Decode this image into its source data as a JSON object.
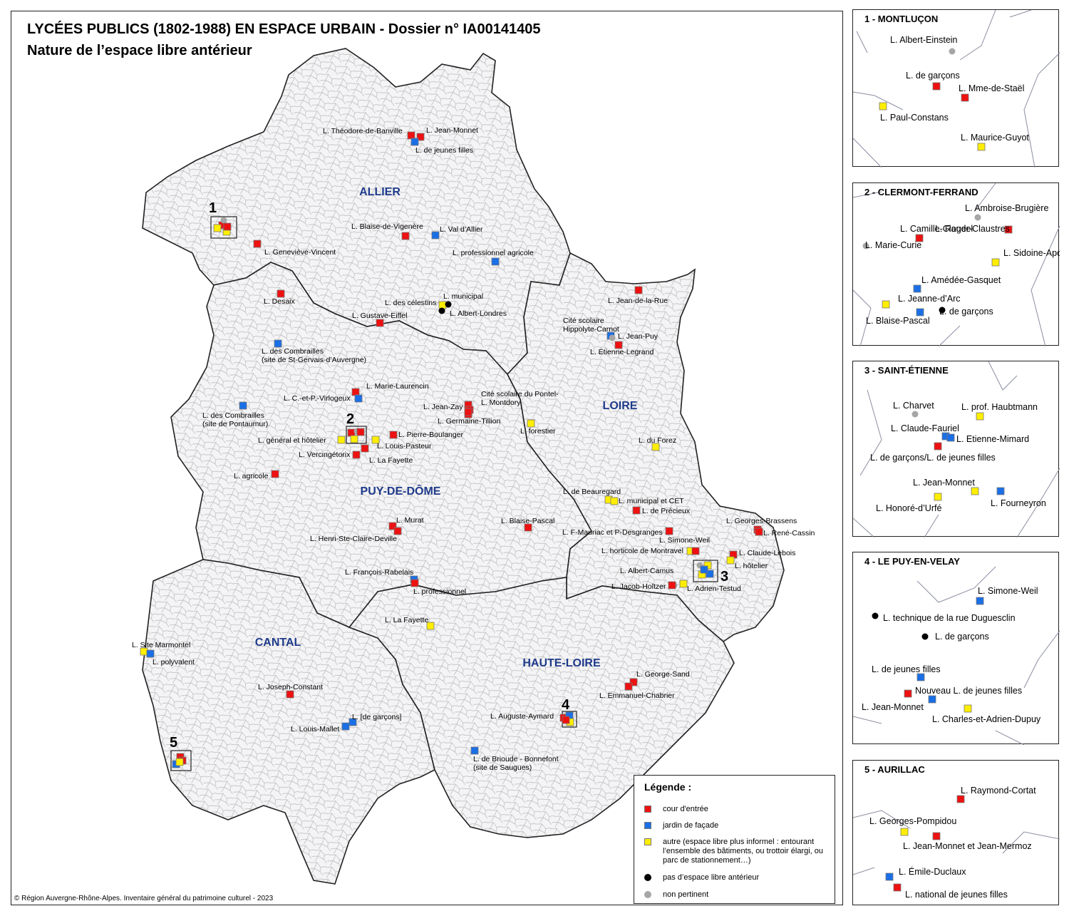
{
  "title": "LYCÉES PUBLICS (1802-1988) EN ESPACE URBAIN - Dossier n° IA00141405",
  "subtitle": "Nature de l’espace libre antérieur",
  "credit": "© Région Auvergne-Rhône-Alpes. Inventaire général du patrimoine culturel - 2023",
  "colors": {
    "cour": "#ee1111",
    "jardin": "#1a6fe6",
    "autre": "#ffee00",
    "aucun": "#000000",
    "non_pertinent": "#a6a6a6",
    "dept_label": "#1f3a8a",
    "commune_border": "#b3b3b3",
    "dept_border": "#222222"
  },
  "departments": [
    {
      "name": "ALLIER"
    },
    {
      "name": "PUY-DE-DÔME"
    },
    {
      "name": "LOIRE"
    },
    {
      "name": "CANTAL"
    },
    {
      "name": "HAUTE-LOIRE"
    }
  ],
  "legend": {
    "title": "Légende :",
    "items": [
      {
        "type": "cour",
        "label": "cour d'entrée"
      },
      {
        "type": "jardin",
        "label": "jardin de façade"
      },
      {
        "type": "autre",
        "label": "autre (espace libre plus informel : entourant l’ensemble des bâtiments, ou trottoir élargi, ou parc de stationnement…)"
      },
      {
        "type": "aucun",
        "label": "pas d’espace libre antérieur"
      },
      {
        "type": "non_pertinent",
        "label": "non pertinent"
      }
    ]
  },
  "zoom_boxes": [
    {
      "number": "1"
    },
    {
      "number": "2"
    },
    {
      "number": "3"
    },
    {
      "number": "4"
    },
    {
      "number": "5"
    }
  ],
  "lycees": [
    {
      "label": "L. Théodore-de-Banville",
      "type": "cour"
    },
    {
      "label": "L. Jean-Monnet",
      "type": "cour"
    },
    {
      "label": "L. de jeunes filles",
      "type": "jardin"
    },
    {
      "label": "L. Blaise-de-Vigenère",
      "type": "cour"
    },
    {
      "label": "L. Val d’Allier",
      "type": "jardin"
    },
    {
      "label": "L. Geneviève-Vincent",
      "type": "cour"
    },
    {
      "label": "L. professionnel agricole",
      "type": "jardin"
    },
    {
      "label": "L. Desaix",
      "type": "cour"
    },
    {
      "label": "L. des célestins",
      "type": "autre"
    },
    {
      "label": "L. municipal",
      "type": "aucun"
    },
    {
      "label": "L. Albert-Londres",
      "type": "aucun"
    },
    {
      "label": "L. Gustave-Eiffel",
      "type": "cour"
    },
    {
      "label": "L. Jean-de-la-Rue",
      "type": "cour"
    },
    {
      "label": "Cité scolaire Hippolyte-Carnot",
      "type": "jardin"
    },
    {
      "label": "L. Jean-Puy",
      "type": "non_pertinent"
    },
    {
      "label": "L. Étienne-Legrand",
      "type": "cour"
    },
    {
      "label": "L. des Combrailles (site de St-Gervais-d’Auvergne)",
      "type": "jardin"
    },
    {
      "label": "L. Marie-Laurencin",
      "type": "cour"
    },
    {
      "label": "L. C.-et-P.-Virlogeux",
      "type": "jardin"
    },
    {
      "label": "L. des Combrailles (site de Pontaumur)",
      "type": "jardin"
    },
    {
      "label": "Cité scolaire du Pontel-",
      "type": "cour"
    },
    {
      "label": "L. Jean-Zay",
      "type": "cour"
    },
    {
      "label": "L. Montdory",
      "type": "cour"
    },
    {
      "label": "L. Germaine-Tillion",
      "type": "cour"
    },
    {
      "label": "L. forestier",
      "type": "autre"
    },
    {
      "label": "L. Pierre-Boulanger",
      "type": "cour"
    },
    {
      "label": "L. général et hôtelier",
      "type": "autre"
    },
    {
      "label": "L. Louis-Pasteur",
      "type": "autre"
    },
    {
      "label": "L. Vercingétorix",
      "type": "cour"
    },
    {
      "label": "L. La Fayette",
      "type": "cour"
    },
    {
      "label": "L. du Forez",
      "type": "autre"
    },
    {
      "label": "L. agricole",
      "type": "cour"
    },
    {
      "label": "L. de Beauregard",
      "type": "autre"
    },
    {
      "label": "L. municipal et CET",
      "type": "autre"
    },
    {
      "label": "L. de Précieux",
      "type": "cour"
    },
    {
      "label": "L. Murat",
      "type": "cour"
    },
    {
      "label": "L. Henri-Ste-Claire-Deville",
      "type": "cour"
    },
    {
      "label": "L. Blaise-Pascal",
      "type": "cour"
    },
    {
      "label": "L. F-Mauriac et P-Desgranges",
      "type": "cour"
    },
    {
      "label": "L. Georges-Brassens",
      "type": "cour"
    },
    {
      "label": "L. René-Cassin",
      "type": "cour"
    },
    {
      "label": "L. Simone-Weil",
      "type": "autre"
    },
    {
      "label": "L. horticole de Montravel",
      "type": "cour"
    },
    {
      "label": "L. Claude-Lebois",
      "type": "cour"
    },
    {
      "label": "L. hôtelier",
      "type": "autre"
    },
    {
      "label": "L. François-Rabelais",
      "type": "jardin"
    },
    {
      "label": "L. professionnel",
      "type": "cour"
    },
    {
      "label": "L. Albert-Camus",
      "type": "non_pertinent"
    },
    {
      "label": "L. Jacob-Holtzer",
      "type": "cour"
    },
    {
      "label": "L. Adrien-Testud",
      "type": "autre"
    },
    {
      "label": "L. La Fayette",
      "type": "autre"
    },
    {
      "label": "L. Site Marmontel",
      "type": "autre"
    },
    {
      "label": "L. polyvalent",
      "type": "jardin"
    },
    {
      "label": "L. George-Sand",
      "type": "cour"
    },
    {
      "label": "L. Emmanuel-Chabrier",
      "type": "cour"
    },
    {
      "label": "L. Joseph-Constant",
      "type": "cour"
    },
    {
      "label": "L. [de garçons]",
      "type": "jardin"
    },
    {
      "label": "L. Louis-Mallet",
      "type": "jardin"
    },
    {
      "label": "L. Auguste-Aymard",
      "type": "cour"
    },
    {
      "label": "L. de Brioude - Bonnefont (site de Saugues)",
      "type": "jardin"
    }
  ],
  "insets": [
    {
      "title": "1 - MONTLUÇON",
      "items": [
        {
          "label": "L. Albert-Einstein",
          "type": "non_pertinent"
        },
        {
          "label": "L. de garçons",
          "type": "cour"
        },
        {
          "label": "L. Mme-de-Staël",
          "type": "cour"
        },
        {
          "label": "L. Paul-Constans",
          "type": "autre"
        },
        {
          "label": "L. Maurice-Guyot",
          "type": "autre"
        }
      ]
    },
    {
      "title": "2 - CLERMONT-FERRAND",
      "items": [
        {
          "label": "L. Ambroise-Brugière",
          "type": "non_pertinent"
        },
        {
          "label": "L. Camille-Claudel",
          "type": "cour"
        },
        {
          "label": "L. Roger-Claustres",
          "type": "cour"
        },
        {
          "label": "L. Marie-Curie",
          "type": "non_pertinent"
        },
        {
          "label": "L. Sidoine-Apollinaire",
          "type": "autre"
        },
        {
          "label": "L. Amédée-Gasquet",
          "type": "jardin"
        },
        {
          "label": "L. Jeanne-d’Arc",
          "type": "autre"
        },
        {
          "label": "L. de garçons",
          "type": "aucun"
        },
        {
          "label": "L. Blaise-Pascal",
          "type": "jardin"
        }
      ]
    },
    {
      "title": "3 - SAINT-ÉTIENNE",
      "items": [
        {
          "label": "L. Charvet",
          "type": "non_pertinent"
        },
        {
          "label": "L. prof. Haubtmann",
          "type": "autre"
        },
        {
          "label": "L. Claude-Fauriel",
          "type": "jardin"
        },
        {
          "label": "L. Etienne-Mimard",
          "type": "jardin"
        },
        {
          "label": "L. de garçons/L. de jeunes filles",
          "type": "cour"
        },
        {
          "label": "L. Jean-Monnet",
          "type": "autre"
        },
        {
          "label": "L. Fourneyron",
          "type": "jardin"
        },
        {
          "label": "L. Honoré-d’Urfé",
          "type": "autre"
        }
      ]
    },
    {
      "title": "4 - LE PUY-EN-VELAY",
      "items": [
        {
          "label": "L. Simone-Weil",
          "type": "jardin"
        },
        {
          "label": "L. technique de la rue Duguesclin",
          "type": "aucun"
        },
        {
          "label": "L. de garçons",
          "type": "aucun"
        },
        {
          "label": "L. de jeunes filles",
          "type": "jardin"
        },
        {
          "label": "Nouveau L. de jeunes filles",
          "type": "cour"
        },
        {
          "label": "L. Jean-Monnet",
          "type": "jardin"
        },
        {
          "label": "L. Charles-et-Adrien-Dupuy",
          "type": "autre"
        }
      ]
    },
    {
      "title": "5 - AURILLAC",
      "items": [
        {
          "label": "L. Raymond-Cortat",
          "type": "cour"
        },
        {
          "label": "L. Georges-Pompidou",
          "type": "autre"
        },
        {
          "label": "L. Jean-Monnet et Jean-Mermoz",
          "type": "cour"
        },
        {
          "label": "L. Émile-Duclaux",
          "type": "jardin"
        },
        {
          "label": "L. national de jeunes filles",
          "type": "cour"
        }
      ]
    }
  ]
}
